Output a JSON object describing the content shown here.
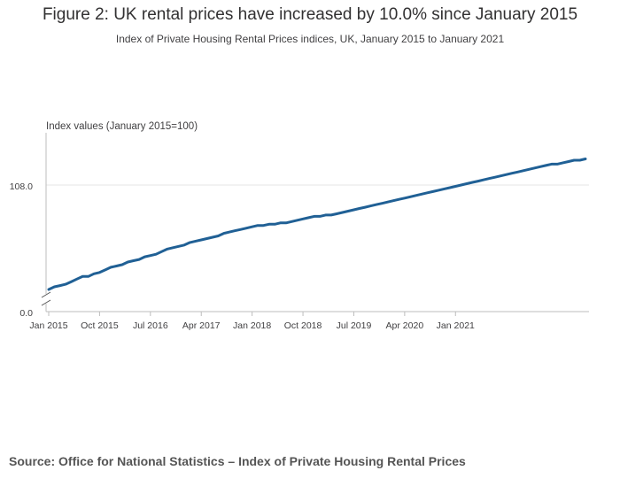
{
  "title": "Figure 2: UK rental prices have increased by 10.0% since January 2015",
  "subtitle": "Index of Private Housing Rental Prices indices, UK, January 2015 to January 2021",
  "source_prefix": "Source: ",
  "source_text": "Office for National Statistics – Index of Private Housing Rental Prices",
  "colors": {
    "line": "#206095",
    "grid": "#e6e6e6",
    "axis": "#bdbdbd",
    "text": "#414042"
  },
  "chart_data": {
    "type": "line",
    "ylabel": "Index values (January 2015=100)",
    "y_ticks": [
      "0.0",
      "108.0"
    ],
    "axis_break": true,
    "x_ticks": [
      "Jan 2015",
      "Oct 2015",
      "Jul 2016",
      "Apr 2017",
      "Jan 2018",
      "Oct 2018",
      "Jul 2019",
      "Apr 2020",
      "Jan 2021"
    ],
    "x_start": "Jan 2015",
    "ylim": [
      100,
      110.5
    ],
    "series": [
      {
        "values": [
          100.0,
          100.2,
          100.3,
          100.4,
          100.6,
          100.8,
          101.0,
          101.0,
          101.2,
          101.3,
          101.5,
          101.7,
          101.8,
          101.9,
          102.1,
          102.2,
          102.3,
          102.5,
          102.6,
          102.7,
          102.9,
          103.1,
          103.2,
          103.3,
          103.4,
          103.6,
          103.7,
          103.8,
          103.9,
          104.0,
          104.1,
          104.3,
          104.4,
          104.5,
          104.6,
          104.7,
          104.8,
          104.9,
          104.9,
          105.0,
          105.0,
          105.1,
          105.1,
          105.2,
          105.3,
          105.4,
          105.5,
          105.6,
          105.6,
          105.7,
          105.7,
          105.8,
          105.9,
          106.0,
          106.1,
          106.2,
          106.3,
          106.4,
          106.5,
          106.6,
          106.7,
          106.8,
          106.9,
          107.0,
          107.1,
          107.2,
          107.3,
          107.4,
          107.5,
          107.6,
          107.7,
          107.8,
          107.9,
          108.0,
          108.1,
          108.2,
          108.3,
          108.4,
          108.5,
          108.6,
          108.7,
          108.8,
          108.9,
          109.0,
          109.1,
          109.2,
          109.3,
          109.4,
          109.5,
          109.6,
          109.6,
          109.7,
          109.8,
          109.9,
          109.9,
          110.0
        ]
      }
    ]
  }
}
